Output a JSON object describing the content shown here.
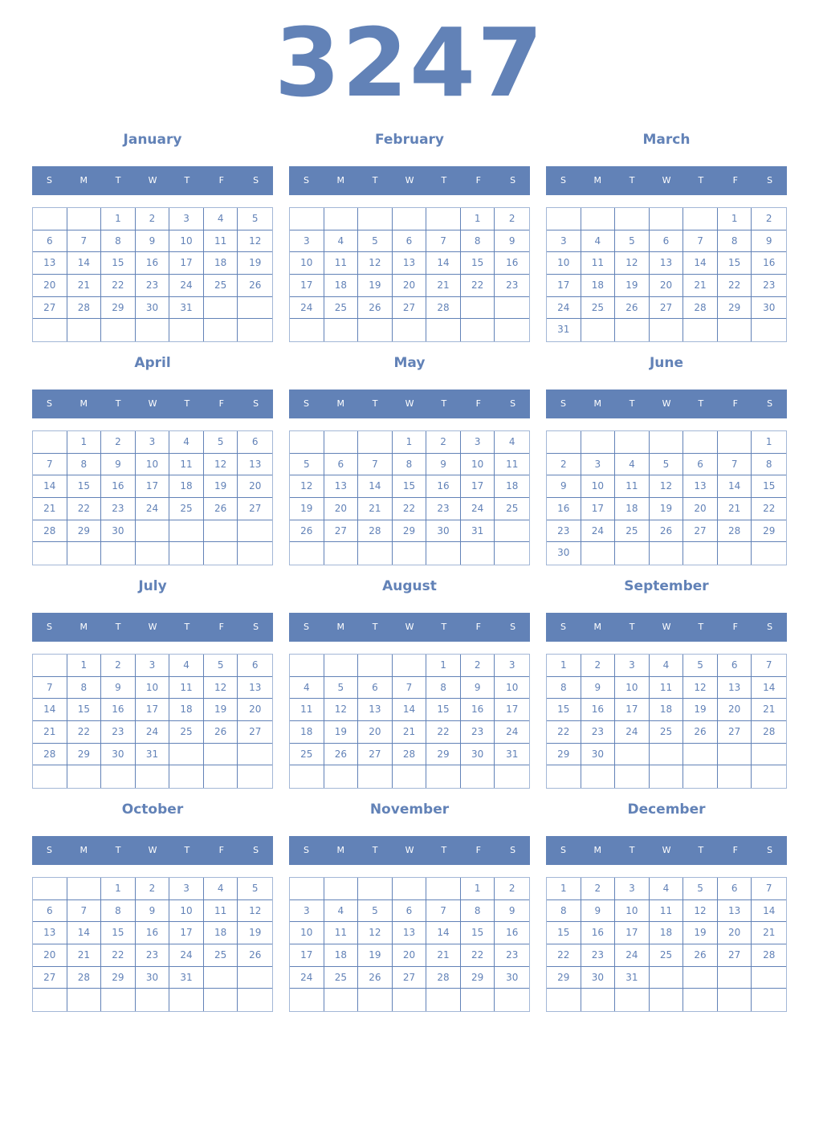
{
  "year": "3247",
  "weekday_labels": [
    "S",
    "M",
    "T",
    "W",
    "T",
    "F",
    "S"
  ],
  "colors": {
    "accent": "#6282b7",
    "grid_outer": "#a3b7d6"
  },
  "months": [
    {
      "name": "January",
      "first_weekday": 2,
      "days": 31
    },
    {
      "name": "February",
      "first_weekday": 5,
      "days": 28
    },
    {
      "name": "March",
      "first_weekday": 5,
      "days": 31
    },
    {
      "name": "April",
      "first_weekday": 1,
      "days": 30
    },
    {
      "name": "May",
      "first_weekday": 3,
      "days": 31
    },
    {
      "name": "June",
      "first_weekday": 6,
      "days": 30
    },
    {
      "name": "July",
      "first_weekday": 1,
      "days": 31
    },
    {
      "name": "August",
      "first_weekday": 4,
      "days": 31
    },
    {
      "name": "September",
      "first_weekday": 0,
      "days": 30
    },
    {
      "name": "October",
      "first_weekday": 2,
      "days": 31
    },
    {
      "name": "November",
      "first_weekday": 5,
      "days": 30
    },
    {
      "name": "December",
      "first_weekday": 0,
      "days": 31
    }
  ]
}
